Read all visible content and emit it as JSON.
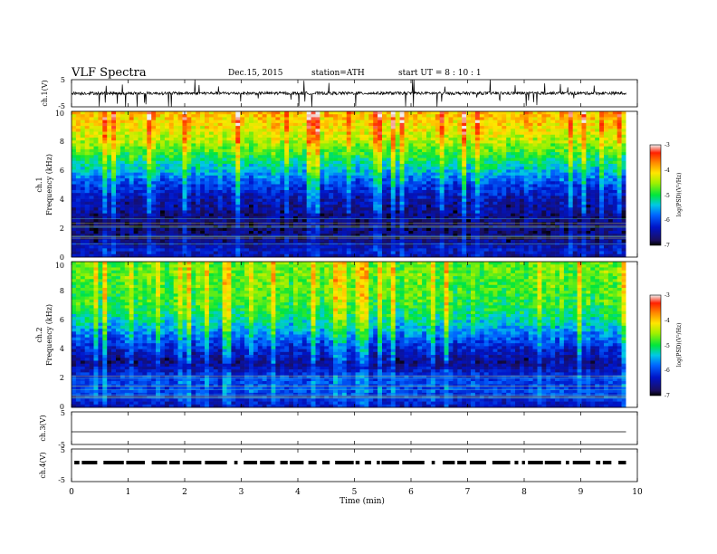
{
  "header": {
    "title": "VLF  Spectra",
    "date": "Dec.15, 2015",
    "station": "station=ATH",
    "start": "start  UT =   8  : 10 : 1"
  },
  "chart_data": [
    {
      "id": "ch1-waveform",
      "type": "line",
      "ylabel": "ch.1(V)",
      "ylim": [
        -5,
        5
      ],
      "yticks": [
        "5",
        "-5"
      ],
      "baseline": 0,
      "xlim": [
        0,
        10
      ],
      "data_end": 9.8,
      "colors": {
        "trace": "#000000"
      }
    },
    {
      "id": "ch1-spectrogram",
      "type": "heatmap",
      "ylabel_lines": [
        "ch.1",
        "Frequency (kHz)"
      ],
      "ylim": [
        0,
        10
      ],
      "yticks": [
        "0",
        "2",
        "4",
        "6",
        "8",
        "10"
      ],
      "xlim": [
        0,
        10
      ],
      "data_end": 9.8,
      "colorbar": {
        "label": "log(PSD)(V²/Hz)",
        "range": [
          -7,
          -3
        ],
        "ticks": [
          "-3",
          "-4",
          "-5",
          "-6",
          "-7"
        ]
      },
      "profile": [
        {
          "f": 0,
          "v": -6.5
        },
        {
          "f": 0.5,
          "v": -6.3
        },
        {
          "f": 1,
          "v": -6.6
        },
        {
          "f": 2,
          "v": -6.7
        },
        {
          "f": 3,
          "v": -6.6
        },
        {
          "f": 4,
          "v": -6.4
        },
        {
          "f": 5,
          "v": -6.0
        },
        {
          "f": 6,
          "v": -5.4
        },
        {
          "f": 7,
          "v": -4.9
        },
        {
          "f": 8,
          "v": -4.4
        },
        {
          "f": 9,
          "v": -4.1
        },
        {
          "f": 10,
          "v": -3.9
        }
      ]
    },
    {
      "id": "ch2-spectrogram",
      "type": "heatmap",
      "ylabel_lines": [
        "ch.2",
        "Frequency (kHz)"
      ],
      "ylim": [
        0,
        10
      ],
      "yticks": [
        "0",
        "2",
        "4",
        "6",
        "8",
        "10"
      ],
      "xlim": [
        0,
        10
      ],
      "data_end": 9.8,
      "colorbar": {
        "label": "log(PSD)(V²/Hz)",
        "range": [
          -7,
          -3
        ],
        "ticks": [
          "-3",
          "-4",
          "-5",
          "-6",
          "-7"
        ]
      },
      "profile": [
        {
          "f": 0,
          "v": -6.4
        },
        {
          "f": 1,
          "v": -6.0
        },
        {
          "f": 2,
          "v": -6.0
        },
        {
          "f": 3,
          "v": -6.6
        },
        {
          "f": 4,
          "v": -6.2
        },
        {
          "f": 5,
          "v": -5.7
        },
        {
          "f": 6,
          "v": -5.2
        },
        {
          "f": 7,
          "v": -4.9
        },
        {
          "f": 8,
          "v": -4.8
        },
        {
          "f": 9,
          "v": -4.7
        },
        {
          "f": 10,
          "v": -4.7
        }
      ]
    },
    {
      "id": "ch3-waveform",
      "type": "line",
      "ylabel": "ch.3(V)",
      "ylim": [
        -5,
        5
      ],
      "yticks": [
        "5",
        "-5"
      ],
      "baseline": 0,
      "xlim": [
        0,
        10
      ],
      "data_end": 9.8,
      "colors": {
        "trace": "#000000"
      }
    },
    {
      "id": "ch4-waveform",
      "type": "line",
      "ylabel": "ch.4(V)",
      "ylim": [
        -5,
        5
      ],
      "yticks": [
        "5",
        "-5"
      ],
      "baseline": 0,
      "xlim": [
        0,
        10
      ],
      "data_end": 9.8,
      "colors": {
        "trace": "#000000"
      }
    }
  ],
  "xaxis": {
    "label": "Time  (min)",
    "ticks": [
      "0",
      "1",
      "2",
      "3",
      "4",
      "5",
      "6",
      "7",
      "8",
      "9",
      "10"
    ]
  }
}
